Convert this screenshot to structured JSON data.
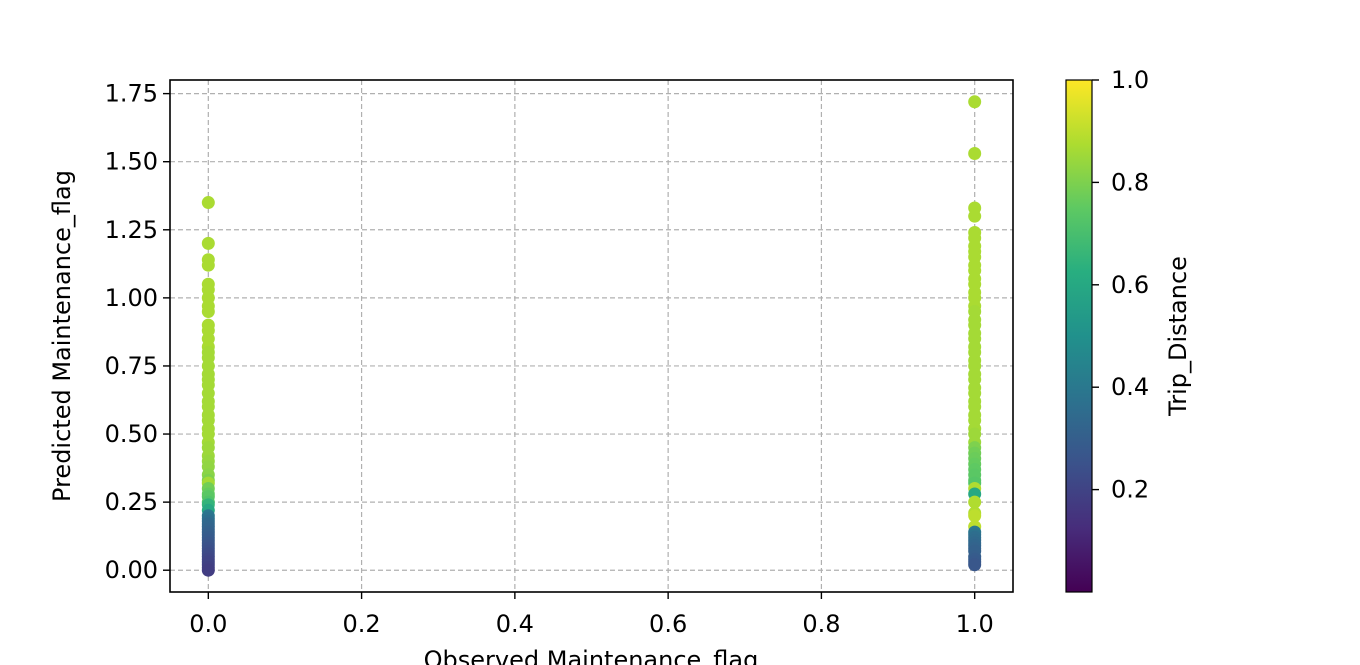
{
  "chart_data": {
    "type": "scatter",
    "title": "",
    "xlabel": "Observed Maintenance_flag",
    "ylabel": "Predicted Maintenance_flag",
    "xlim": [
      -0.05,
      1.05
    ],
    "ylim": [
      -0.08,
      1.8
    ],
    "x_ticks": [
      0.0,
      0.2,
      0.4,
      0.6,
      0.8,
      1.0
    ],
    "x_tick_labels": [
      "0.0",
      "0.2",
      "0.4",
      "0.6",
      "0.8",
      "1.0"
    ],
    "y_ticks": [
      0.0,
      0.25,
      0.5,
      0.75,
      1.0,
      1.25,
      1.5,
      1.75
    ],
    "y_tick_labels": [
      "0.00",
      "0.25",
      "0.50",
      "0.75",
      "1.00",
      "1.25",
      "1.50",
      "1.75"
    ],
    "grid": true,
    "colormap": "viridis",
    "colorbar": {
      "label": "Trip_Distance",
      "range": [
        0.0,
        1.0
      ],
      "ticks": [
        0.2,
        0.4,
        0.6,
        0.8,
        1.0
      ],
      "tick_labels": [
        "0.2",
        "0.4",
        "0.6",
        "0.8",
        "1.0"
      ]
    },
    "series": [
      {
        "x": [
          0,
          0,
          0,
          0,
          0,
          0,
          0,
          0,
          0,
          0,
          0,
          0,
          0,
          0,
          0,
          0,
          0,
          0,
          0,
          0,
          0,
          0,
          0,
          0,
          0,
          0,
          0,
          0,
          0,
          0,
          0,
          0,
          0,
          0,
          0,
          0,
          0,
          0,
          0,
          0,
          0,
          0,
          0,
          0,
          0,
          0,
          0,
          0,
          0,
          0,
          0,
          0,
          0,
          0,
          0,
          0,
          0,
          0,
          0,
          0,
          0
        ],
        "y": [
          1.35,
          1.2,
          1.14,
          1.12,
          1.05,
          1.03,
          1.0,
          0.97,
          0.95,
          0.9,
          0.88,
          0.85,
          0.82,
          0.8,
          0.78,
          0.75,
          0.72,
          0.7,
          0.68,
          0.65,
          0.62,
          0.6,
          0.57,
          0.55,
          0.52,
          0.5,
          0.47,
          0.45,
          0.42,
          0.4,
          0.38,
          0.35,
          0.33,
          0.32,
          0.3,
          0.28,
          0.27,
          0.25,
          0.24,
          0.22,
          0.2,
          0.19,
          0.18,
          0.17,
          0.16,
          0.15,
          0.14,
          0.13,
          0.12,
          0.11,
          0.1,
          0.09,
          0.08,
          0.07,
          0.06,
          0.05,
          0.04,
          0.03,
          0.02,
          0.01,
          0.0
        ],
        "c": [
          0.87,
          0.87,
          0.87,
          0.87,
          0.87,
          0.87,
          0.87,
          0.87,
          0.87,
          0.87,
          0.87,
          0.87,
          0.87,
          0.86,
          0.86,
          0.86,
          0.86,
          0.86,
          0.86,
          0.86,
          0.86,
          0.86,
          0.86,
          0.86,
          0.86,
          0.86,
          0.86,
          0.85,
          0.85,
          0.84,
          0.83,
          0.82,
          0.8,
          0.86,
          0.78,
          0.76,
          0.74,
          0.72,
          0.65,
          0.6,
          0.4,
          0.38,
          0.36,
          0.34,
          0.33,
          0.32,
          0.31,
          0.3,
          0.29,
          0.28,
          0.27,
          0.26,
          0.25,
          0.24,
          0.23,
          0.22,
          0.21,
          0.2,
          0.2,
          0.19,
          0.18
        ]
      },
      {
        "x": [
          1,
          1,
          1,
          1,
          1,
          1,
          1,
          1,
          1,
          1,
          1,
          1,
          1,
          1,
          1,
          1,
          1,
          1,
          1,
          1,
          1,
          1,
          1,
          1,
          1,
          1,
          1,
          1,
          1,
          1,
          1,
          1,
          1,
          1,
          1,
          1,
          1,
          1,
          1,
          1,
          1,
          1,
          1,
          1,
          1,
          1,
          1,
          1,
          1,
          1,
          1,
          1,
          1,
          1,
          1,
          1,
          1,
          1,
          1,
          1,
          1,
          1
        ],
        "y": [
          1.72,
          1.53,
          1.33,
          1.3,
          1.24,
          1.22,
          1.19,
          1.17,
          1.15,
          1.12,
          1.1,
          1.07,
          1.05,
          1.02,
          1.0,
          0.97,
          0.95,
          0.92,
          0.9,
          0.87,
          0.85,
          0.82,
          0.8,
          0.77,
          0.75,
          0.72,
          0.7,
          0.67,
          0.65,
          0.62,
          0.6,
          0.57,
          0.55,
          0.52,
          0.5,
          0.47,
          0.45,
          0.43,
          0.41,
          0.39,
          0.37,
          0.35,
          0.33,
          0.32,
          0.3,
          0.28,
          0.25,
          0.21,
          0.2,
          0.16,
          0.14,
          0.13,
          0.12,
          0.11,
          0.1,
          0.09,
          0.08,
          0.07,
          0.05,
          0.04,
          0.03,
          0.02
        ],
        "c": [
          0.87,
          0.87,
          0.87,
          0.87,
          0.87,
          0.87,
          0.87,
          0.87,
          0.87,
          0.87,
          0.87,
          0.87,
          0.87,
          0.87,
          0.87,
          0.87,
          0.86,
          0.86,
          0.86,
          0.86,
          0.86,
          0.86,
          0.86,
          0.86,
          0.86,
          0.86,
          0.86,
          0.86,
          0.86,
          0.86,
          0.86,
          0.86,
          0.86,
          0.86,
          0.85,
          0.85,
          0.8,
          0.78,
          0.77,
          0.76,
          0.75,
          0.74,
          0.74,
          0.73,
          0.88,
          0.6,
          0.88,
          0.88,
          0.9,
          0.9,
          0.4,
          0.38,
          0.36,
          0.35,
          0.34,
          0.33,
          0.32,
          0.31,
          0.3,
          0.29,
          0.28,
          0.27
        ]
      }
    ]
  }
}
